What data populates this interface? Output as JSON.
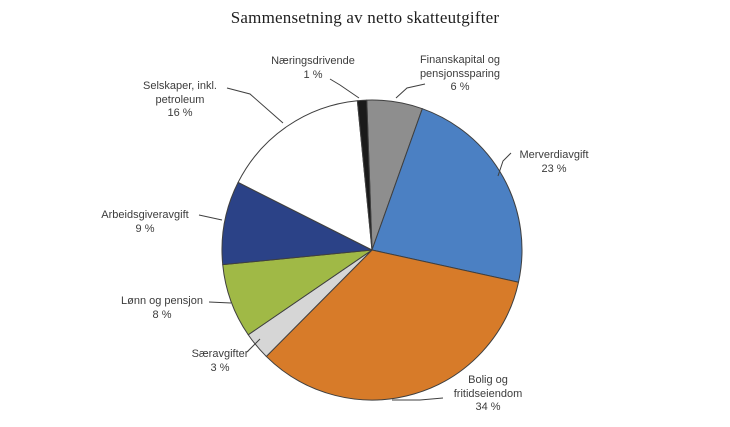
{
  "chart_data": {
    "type": "pie",
    "title": "Sammensetning av netto skatteutgifter",
    "legend_position": "none",
    "background_color": "#ffffff",
    "outline_color": "#3f3f3f",
    "start_angle_deg": -2,
    "direction": "clockwise",
    "value_unit": "%",
    "slices": [
      {
        "id": "finanskapital",
        "label": "Finanskapital og\npensjonssparing",
        "value": 6,
        "pct_label": "6 %",
        "color": "#8e8e8e"
      },
      {
        "id": "merverdiavgift",
        "label": "Merverdiavgift",
        "value": 23,
        "pct_label": "23 %",
        "color": "#4b80c3"
      },
      {
        "id": "bolig",
        "label": "Bolig og\nfritidseiendom",
        "value": 34,
        "pct_label": "34 %",
        "color": "#d77b29"
      },
      {
        "id": "saeravgifter",
        "label": "Særavgifter",
        "value": 3,
        "pct_label": "3 %",
        "color": "#d6d6d6"
      },
      {
        "id": "lonn",
        "label": "Lønn og pensjon",
        "value": 8,
        "pct_label": "8 %",
        "color": "#a0b946"
      },
      {
        "id": "arbeidsgiveravgift",
        "label": "Arbeidsgiveravgift",
        "value": 9,
        "pct_label": "9 %",
        "color": "#2b4287"
      },
      {
        "id": "selskaper",
        "label": "Selskaper, inkl.\npetroleum",
        "value": 16,
        "pct_label": "16 %",
        "color": "#ffffff"
      },
      {
        "id": "naeringsdrivende",
        "label": "Næringsdrivende",
        "value": 1,
        "pct_label": "1 %",
        "color": "#1a1a1a"
      }
    ]
  }
}
